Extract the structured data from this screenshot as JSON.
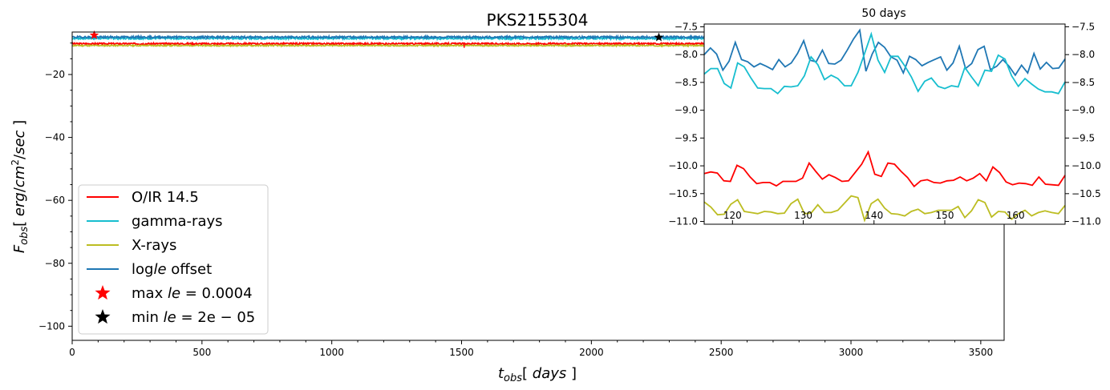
{
  "chart_data": [
    {
      "type": "line",
      "title": "PKS2155304",
      "xlabel_html": "t_obs[ days ]",
      "ylabel_html": "F_obs[ erg/cm^2/sec ]",
      "xlim": [
        0,
        3590
      ],
      "ylim": [
        -104.5,
        -6.5
      ],
      "xticks": [
        0,
        500,
        1000,
        1500,
        2000,
        2500,
        3000,
        3500
      ],
      "yticks": [
        -100,
        -80,
        -60,
        -40,
        -20
      ],
      "series": [
        {
          "name": "O/IR 14.5",
          "color": "#ff0000",
          "base": -10.2,
          "amp": 0.25,
          "seed": 3
        },
        {
          "name": "gamma-rays",
          "color": "#17becf",
          "base": -8.5,
          "amp": 0.3,
          "seed": 7
        },
        {
          "name": "X-rays",
          "color": "#bcbd22",
          "base": -10.8,
          "amp": 0.2,
          "seed": 11
        },
        {
          "name": "log le offset",
          "color": "#1f77b4",
          "base": -8.1,
          "amp": 0.3,
          "seed": 19
        }
      ],
      "markers": [
        {
          "name": "max le = 0.0004",
          "x": 85,
          "y": -7.5,
          "color": "#ff0000"
        },
        {
          "name": "min le = 2e-05",
          "x": 2260,
          "y": -8.2,
          "color": "#000000"
        }
      ],
      "spikes": [
        {
          "x": 1510,
          "y": -11.5
        }
      ],
      "legend": {
        "placement": "lower-left",
        "entries": [
          {
            "label": "O/IR 14.5",
            "kind": "line",
            "color": "#ff0000"
          },
          {
            "label": "gamma-rays",
            "kind": "line",
            "color": "#17becf"
          },
          {
            "label": "X-rays",
            "kind": "line",
            "color": "#bcbd22"
          },
          {
            "label": "log",
            "italic": "le",
            "tail": " offset",
            "kind": "line",
            "color": "#1f77b4"
          },
          {
            "label": "max ",
            "italic": "le",
            "tail": " = 0.0004",
            "kind": "star",
            "color": "#ff0000"
          },
          {
            "label": "min ",
            "italic": "le",
            "tail": " = 2e − 05",
            "kind": "star",
            "color": "#000000"
          }
        ]
      }
    },
    {
      "type": "line",
      "title": "50 days",
      "xlim": [
        116,
        167
      ],
      "ylim": [
        -11.05,
        -7.45
      ],
      "xticks": [
        120,
        130,
        140,
        150,
        160
      ],
      "yticks": [
        -11.0,
        -10.5,
        -10.0,
        -9.5,
        -9.0,
        -8.5,
        -8.0,
        -7.5
      ],
      "ytick_labels": [
        "−11.0",
        "−10.5",
        "−10.0",
        "−9.5",
        "−9.0",
        "−8.5",
        "−8.0",
        "−7.5"
      ],
      "x_start": 116,
      "series": [
        {
          "name": "log le offset",
          "color": "#1f77b4",
          "values": [
            -8.0,
            -7.88,
            -7.99,
            -8.28,
            -8.12,
            -7.78,
            -8.09,
            -8.13,
            -8.22,
            -8.16,
            -8.21,
            -8.27,
            -8.09,
            -8.22,
            -8.15,
            -7.98,
            -7.75,
            -8.1,
            -8.13,
            -7.92,
            -8.16,
            -8.17,
            -8.1,
            -7.92,
            -7.72,
            -7.56,
            -8.3,
            -7.99,
            -7.78,
            -7.87,
            -8.04,
            -8.1,
            -8.33,
            -8.03,
            -8.09,
            -8.2,
            -8.14,
            -8.09,
            -8.04,
            -8.28,
            -8.15,
            -7.85,
            -8.25,
            -8.16,
            -7.91,
            -7.85,
            -8.27,
            -8.21,
            -8.09,
            -8.21,
            -8.37,
            -8.19,
            -8.33,
            -7.98,
            -8.26,
            -8.14,
            -8.25,
            -8.24,
            -8.08
          ]
        },
        {
          "name": "gamma-rays",
          "color": "#17becf",
          "values": [
            -8.35,
            -8.25,
            -8.25,
            -8.52,
            -8.6,
            -8.15,
            -8.22,
            -8.42,
            -8.6,
            -8.61,
            -8.61,
            -8.7,
            -8.57,
            -8.58,
            -8.56,
            -8.38,
            -8.04,
            -8.18,
            -8.45,
            -8.37,
            -8.43,
            -8.56,
            -8.56,
            -8.32,
            -7.98,
            -7.63,
            -8.1,
            -8.32,
            -8.03,
            -8.03,
            -8.2,
            -8.4,
            -8.66,
            -8.48,
            -8.42,
            -8.57,
            -8.61,
            -8.56,
            -8.58,
            -8.23,
            -8.4,
            -8.56,
            -8.28,
            -8.3,
            -8.01,
            -8.08,
            -8.38,
            -8.57,
            -8.43,
            -8.53,
            -8.62,
            -8.67,
            -8.67,
            -8.7,
            -8.49
          ]
        },
        {
          "name": "O/IR 14.5",
          "color": "#ff0000",
          "values": [
            -10.14,
            -10.11,
            -10.13,
            -10.27,
            -10.28,
            -9.99,
            -10.05,
            -10.2,
            -10.32,
            -10.3,
            -10.3,
            -10.36,
            -10.28,
            -10.28,
            -10.28,
            -10.22,
            -9.95,
            -10.1,
            -10.24,
            -10.16,
            -10.21,
            -10.28,
            -10.27,
            -10.12,
            -9.97,
            -9.75,
            -10.15,
            -10.19,
            -9.95,
            -9.97,
            -10.1,
            -10.21,
            -10.37,
            -10.27,
            -10.25,
            -10.3,
            -10.31,
            -10.27,
            -10.26,
            -10.2,
            -10.27,
            -10.22,
            -10.14,
            -10.27,
            -10.02,
            -10.12,
            -10.29,
            -10.34,
            -10.31,
            -10.32,
            -10.35,
            -10.2,
            -10.33,
            -10.34,
            -10.35,
            -10.17
          ]
        },
        {
          "name": "X-rays",
          "color": "#bcbd22",
          "values": [
            -10.65,
            -10.74,
            -10.88,
            -10.87,
            -10.69,
            -10.61,
            -10.82,
            -10.84,
            -10.86,
            -10.82,
            -10.83,
            -10.86,
            -10.85,
            -10.68,
            -10.6,
            -10.86,
            -10.85,
            -10.7,
            -10.84,
            -10.84,
            -10.8,
            -10.67,
            -10.54,
            -10.57,
            -10.98,
            -10.68,
            -10.6,
            -10.76,
            -10.86,
            -10.87,
            -10.9,
            -10.82,
            -10.78,
            -10.86,
            -10.84,
            -10.8,
            -10.8,
            -10.8,
            -10.73,
            -10.93,
            -10.81,
            -10.61,
            -10.66,
            -10.92,
            -10.82,
            -10.83,
            -10.96,
            -10.86,
            -10.8,
            -10.9,
            -10.84,
            -10.81,
            -10.84,
            -10.86,
            -10.71
          ]
        }
      ]
    }
  ]
}
